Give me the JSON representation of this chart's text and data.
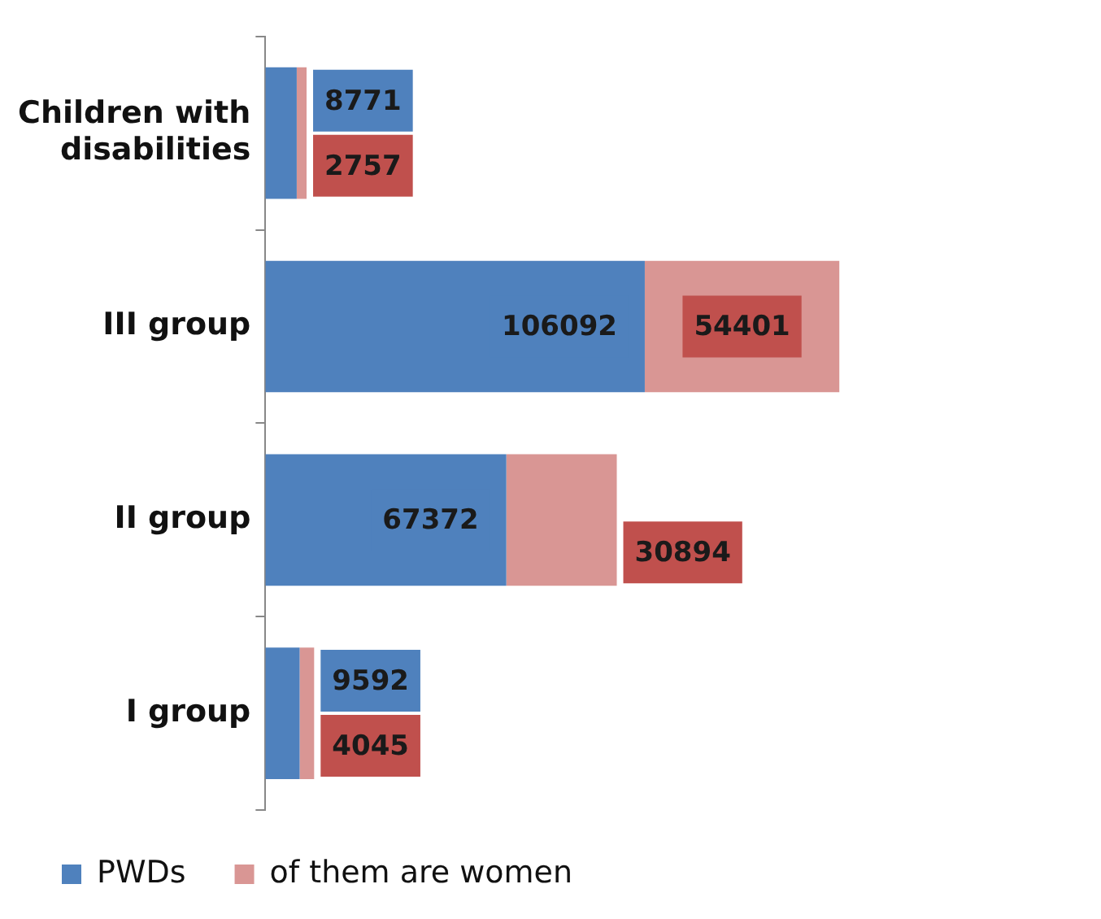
{
  "chart_data": {
    "type": "bar",
    "orientation": "horizontal",
    "stacked": true,
    "categories": [
      "Children with disabilities",
      "III group",
      "II group",
      "I group"
    ],
    "series": [
      {
        "name": "PWDs",
        "color": "#4f81bd",
        "values": [
          8771,
          106092,
          67372,
          9592
        ]
      },
      {
        "name": "of them are women",
        "color": "#d99694",
        "values": [
          2757,
          54401,
          30894,
          4045
        ]
      }
    ],
    "data_labels": true,
    "legend": "bottom"
  }
}
